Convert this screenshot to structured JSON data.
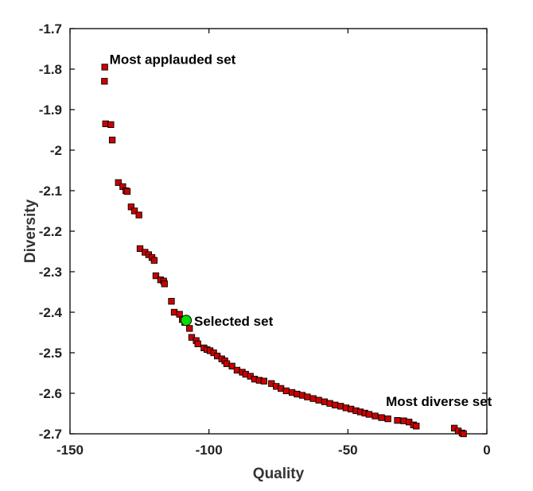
{
  "chart_data": {
    "type": "scatter",
    "title": "",
    "xlabel": "Quality",
    "ylabel": "Diversity",
    "xlim": [
      -150,
      0
    ],
    "ylim": [
      -2.7,
      -1.7
    ],
    "xticks": [
      -150,
      -100,
      -50,
      0
    ],
    "yticks": [
      -1.7,
      -1.8,
      -1.9,
      -2,
      -2.1,
      -2.2,
      -2.3,
      -2.4,
      -2.5,
      -2.6,
      -2.7
    ],
    "xtick_labels": [
      "-150",
      "-100",
      "-50",
      "0"
    ],
    "ytick_labels": [
      "-1.7",
      "-1.8",
      "-1.9",
      "-2",
      "-2.1",
      "-2.2",
      "-2.3",
      "-2.4",
      "-2.5",
      "-2.6",
      "-2.7"
    ],
    "grid": false,
    "series": [
      {
        "marker": "square",
        "color": "#cc0000",
        "edge_color": "#000000",
        "points": [
          [
            -137.5,
            -1.795
          ],
          [
            -137.6,
            -1.83
          ],
          [
            -137.2,
            -1.935
          ],
          [
            -135.3,
            -1.937
          ],
          [
            -134.8,
            -1.975
          ],
          [
            -132.6,
            -2.08
          ],
          [
            -131.0,
            -2.09
          ],
          [
            -129.9,
            -2.1
          ],
          [
            -129.4,
            -2.102
          ],
          [
            -128.0,
            -2.14
          ],
          [
            -126.8,
            -2.15
          ],
          [
            -125.2,
            -2.16
          ],
          [
            -124.8,
            -2.243
          ],
          [
            -123.0,
            -2.252
          ],
          [
            -121.7,
            -2.258
          ],
          [
            -120.5,
            -2.265
          ],
          [
            -119.7,
            -2.272
          ],
          [
            -119.1,
            -2.31
          ],
          [
            -117.4,
            -2.32
          ],
          [
            -116.3,
            -2.323
          ],
          [
            -116.0,
            -2.33
          ],
          [
            -113.5,
            -2.373
          ],
          [
            -112.5,
            -2.4
          ],
          [
            -110.6,
            -2.405
          ],
          [
            -109.6,
            -2.418
          ],
          [
            -108.7,
            -2.425
          ],
          [
            -107.0,
            -2.44
          ],
          [
            -106.2,
            -2.462
          ],
          [
            -104.6,
            -2.47
          ],
          [
            -104.0,
            -2.478
          ],
          [
            -101.8,
            -2.488
          ],
          [
            -100.7,
            -2.492
          ],
          [
            -99.6,
            -2.495
          ],
          [
            -98.3,
            -2.5
          ],
          [
            -97.0,
            -2.508
          ],
          [
            -95.4,
            -2.515
          ],
          [
            -94.3,
            -2.52
          ],
          [
            -93.6,
            -2.527
          ],
          [
            -91.7,
            -2.533
          ],
          [
            -89.9,
            -2.543
          ],
          [
            -88.0,
            -2.548
          ],
          [
            -86.8,
            -2.553
          ],
          [
            -85.1,
            -2.558
          ],
          [
            -83.6,
            -2.565
          ],
          [
            -81.9,
            -2.568
          ],
          [
            -80.2,
            -2.57
          ],
          [
            -77.5,
            -2.576
          ],
          [
            -75.8,
            -2.583
          ],
          [
            -74.1,
            -2.588
          ],
          [
            -72.2,
            -2.594
          ],
          [
            -70.1,
            -2.598
          ],
          [
            -68.3,
            -2.602
          ],
          [
            -66.4,
            -2.605
          ],
          [
            -64.6,
            -2.609
          ],
          [
            -62.5,
            -2.613
          ],
          [
            -60.5,
            -2.617
          ],
          [
            -58.4,
            -2.621
          ],
          [
            -56.5,
            -2.625
          ],
          [
            -54.6,
            -2.629
          ],
          [
            -52.6,
            -2.632
          ],
          [
            -50.7,
            -2.636
          ],
          [
            -48.9,
            -2.639
          ],
          [
            -47.1,
            -2.643
          ],
          [
            -45.5,
            -2.646
          ],
          [
            -43.9,
            -2.649
          ],
          [
            -42.4,
            -2.652
          ],
          [
            -40.2,
            -2.656
          ],
          [
            -37.9,
            -2.66
          ],
          [
            -35.6,
            -2.663
          ],
          [
            -32.2,
            -2.667
          ],
          [
            -29.9,
            -2.668
          ],
          [
            -28.0,
            -2.671
          ],
          [
            -26.4,
            -2.678
          ],
          [
            -25.4,
            -2.681
          ],
          [
            -11.7,
            -2.686
          ],
          [
            -10.3,
            -2.693
          ],
          [
            -8.9,
            -2.698
          ],
          [
            -8.4,
            -2.7
          ]
        ]
      },
      {
        "marker": "circle",
        "color": "#00e000",
        "edge_color": "#000000",
        "points": [
          [
            -108.2,
            -2.42
          ]
        ]
      }
    ],
    "annotations": [
      {
        "text": "Most applauded set",
        "x": -137.5,
        "y": -1.795
      },
      {
        "text": "Selected set",
        "x": -108.2,
        "y": -2.42
      },
      {
        "text": "Most diverse set",
        "x": -11.7,
        "y": -2.686
      }
    ]
  }
}
